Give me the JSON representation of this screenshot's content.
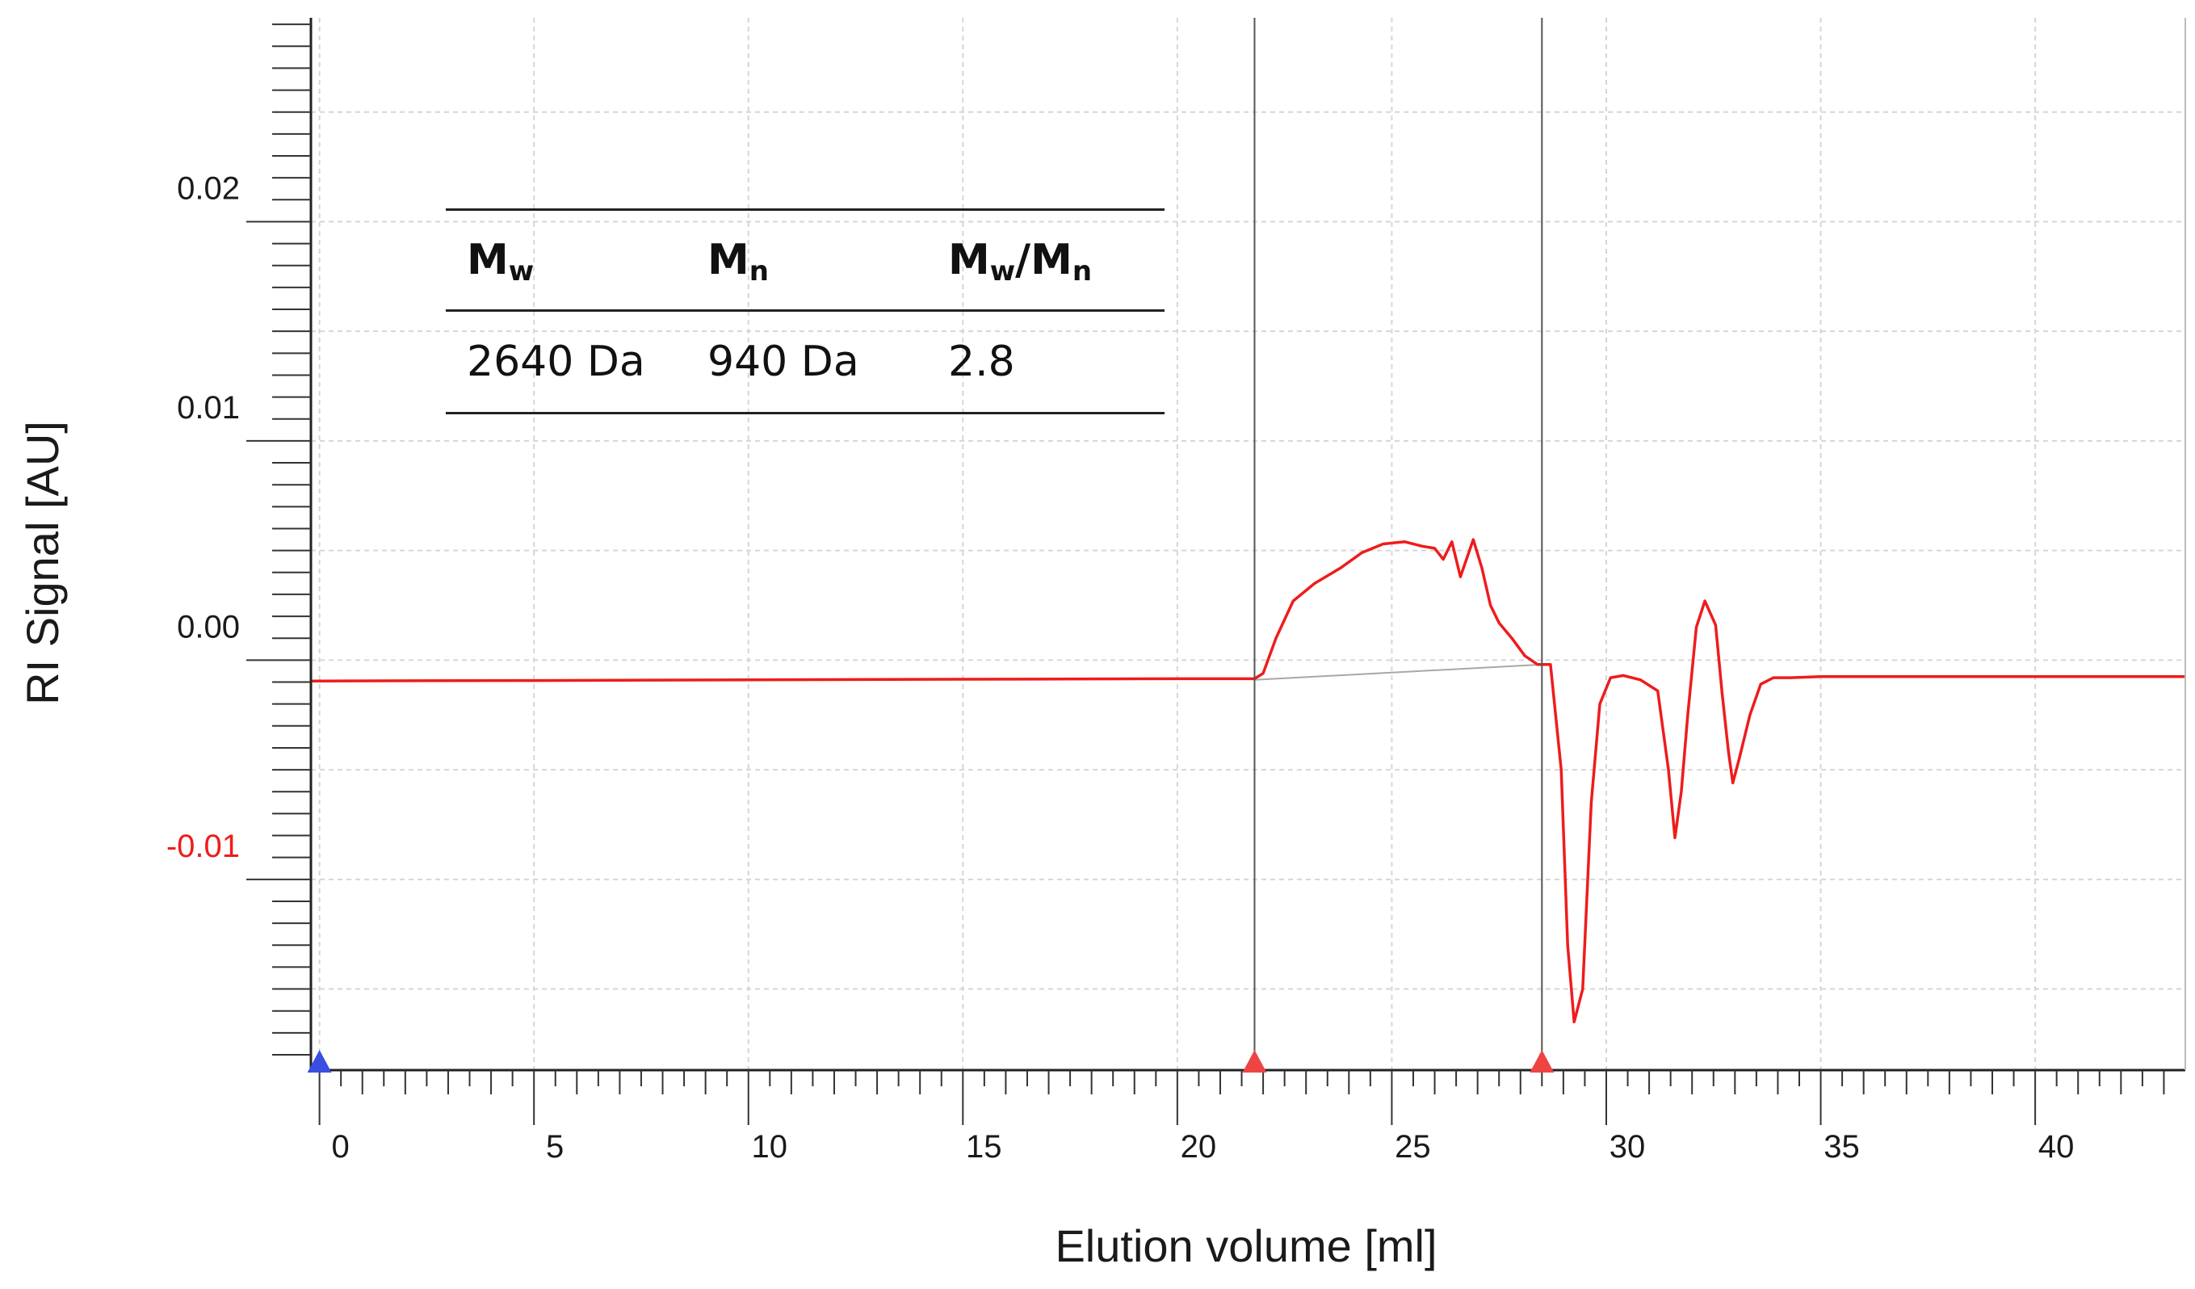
{
  "chart_data": {
    "type": "line",
    "title": "",
    "xlabel": "Elution volume [ml]",
    "ylabel": "RI Signal [AU]",
    "xlim": [
      -0.2,
      43.5
    ],
    "ylim": [
      -0.0187,
      0.0293
    ],
    "x_ticks": [
      0,
      5,
      10,
      15,
      20,
      25,
      30,
      35,
      40
    ],
    "x_tick_labels": [
      "0",
      "5",
      "10",
      "15",
      "20",
      "25",
      "30",
      "35",
      "40"
    ],
    "y_ticks": [
      0.02,
      0.01,
      0.0,
      -0.01
    ],
    "y_tick_labels": [
      "0.02",
      "0.01",
      "0.00",
      "-0.01"
    ],
    "y_tick_colors": [
      "#1a1a1a",
      "#1a1a1a",
      "#1a1a1a",
      "#ee1c1c"
    ],
    "grid": true,
    "integration_limits": [
      21.8,
      28.5
    ],
    "injection_marker": 0,
    "baseline": {
      "x": [
        21.8,
        28.5
      ],
      "y": [
        -0.0009,
        -0.0002
      ]
    },
    "series": [
      {
        "name": "RI signal",
        "color": "#ee1c1c",
        "x": [
          -0.2,
          5,
          10,
          15,
          20,
          21.8,
          22.0,
          22.3,
          22.7,
          23.2,
          23.8,
          24.3,
          24.8,
          25.3,
          25.7,
          26.0,
          26.2,
          26.4,
          26.6,
          26.9,
          27.1,
          27.3,
          27.5,
          27.8,
          28.1,
          28.4,
          28.7,
          28.95,
          29.1,
          29.25,
          29.45,
          29.65,
          29.85,
          30.1,
          30.4,
          30.8,
          31.2,
          31.45,
          31.6,
          31.75,
          31.9,
          32.1,
          32.3,
          32.55,
          32.7,
          32.85,
          32.95,
          33.1,
          33.35,
          33.6,
          33.9,
          34.3,
          35,
          40,
          43.5
        ],
        "y": [
          -0.00095,
          -0.00093,
          -0.0009,
          -0.00087,
          -0.00085,
          -0.00085,
          -0.0006,
          0.001,
          0.0027,
          0.0035,
          0.0042,
          0.0049,
          0.0053,
          0.0054,
          0.0052,
          0.0051,
          0.0046,
          0.0054,
          0.0038,
          0.0055,
          0.0042,
          0.0025,
          0.0017,
          0.001,
          0.0002,
          -0.0002,
          -0.0002,
          -0.005,
          -0.013,
          -0.0165,
          -0.015,
          -0.0065,
          -0.002,
          -0.0008,
          -0.0007,
          -0.0009,
          -0.0014,
          -0.005,
          -0.0081,
          -0.006,
          -0.0025,
          0.0015,
          0.0027,
          0.0016,
          -0.0015,
          -0.0042,
          -0.0056,
          -0.0045,
          -0.0025,
          -0.0011,
          -0.0008,
          -0.0008,
          -0.00075,
          -0.00075,
          -0.00075
        ]
      }
    ]
  },
  "table": {
    "headers": [
      {
        "main": "M",
        "sub": "w",
        "suffix": "",
        "suffix_sub": ""
      },
      {
        "main": "M",
        "sub": "n",
        "suffix": "",
        "suffix_sub": ""
      },
      {
        "main": "M",
        "sub": "w",
        "suffix": "/M",
        "suffix_sub": "n"
      }
    ],
    "values": [
      "2640 Da",
      "940 Da",
      "2.8"
    ]
  }
}
